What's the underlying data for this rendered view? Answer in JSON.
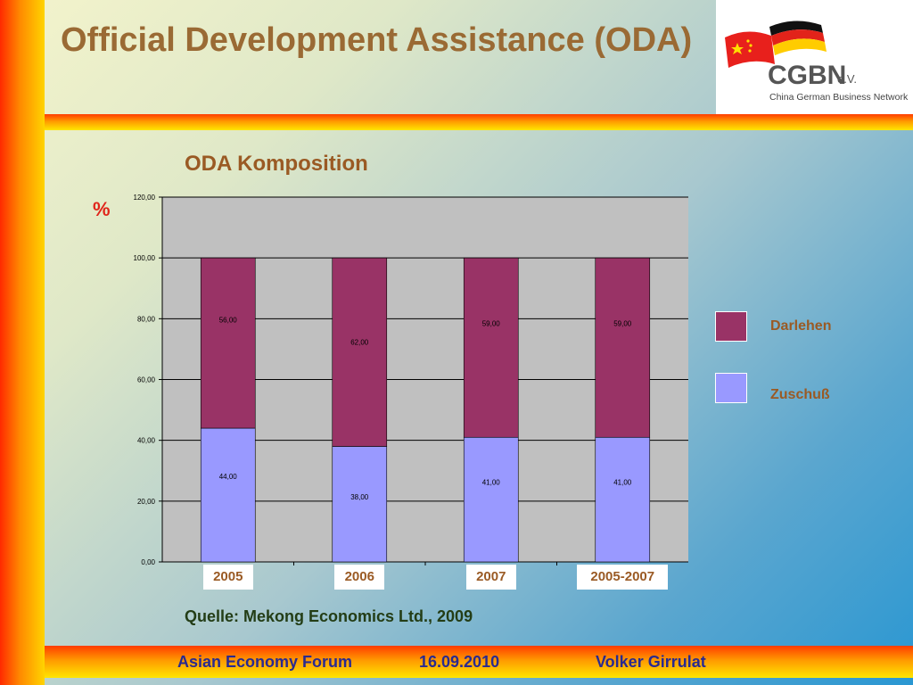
{
  "slide": {
    "title": "Official Development Assistance (ODA)",
    "source": "Quelle: Mekong Economics Ltd., 2009"
  },
  "logo": {
    "text": "CGBN",
    "suffix": "e.V.",
    "subtitle": "China German Business Network",
    "flags": [
      "china-flag",
      "germany-flag"
    ]
  },
  "footer": {
    "event": "Asian Economy Forum",
    "date": "16.09.2010",
    "author": "Volker Girrulat"
  },
  "colors": {
    "darlehen": "#993366",
    "zuschuss": "#9999ff",
    "plot_bg": "#c0c0c0",
    "title": "#9a6a34"
  },
  "chart_data": {
    "type": "bar",
    "stacked": true,
    "title": "ODA Komposition",
    "ylabel": "%",
    "xlabel": "",
    "categories": [
      "2005",
      "2006",
      "2007",
      "2005-2007"
    ],
    "series": [
      {
        "name": "Zuschuß",
        "values": [
          44,
          38,
          41,
          41
        ],
        "labels": [
          "44,00",
          "38,00",
          "41,00",
          "41,00"
        ],
        "color": "#9999ff"
      },
      {
        "name": "Darlehen",
        "values": [
          56,
          62,
          59,
          59
        ],
        "labels": [
          "56,00",
          "62,00",
          "59,00",
          "59,00"
        ],
        "color": "#993366"
      }
    ],
    "ylim": [
      0,
      120
    ],
    "yticks": [
      0,
      20,
      40,
      60,
      80,
      100,
      120
    ],
    "ytick_labels": [
      "0,00",
      "20,00",
      "40,00",
      "60,00",
      "80,00",
      "100,00",
      "120,00"
    ],
    "grid": true,
    "legend": "right",
    "legend_entries": [
      "Darlehen",
      "Zuschuß"
    ]
  }
}
